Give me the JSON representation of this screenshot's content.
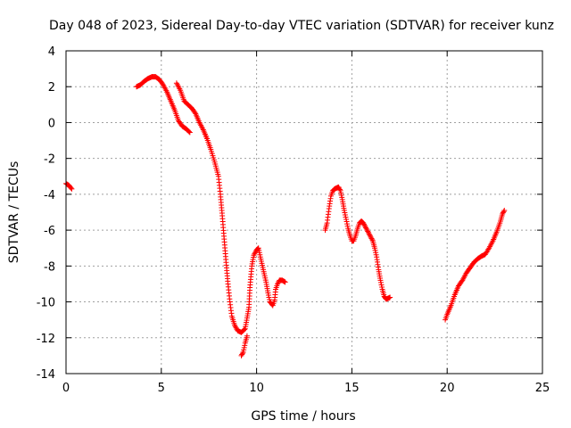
{
  "chart_data": {
    "type": "scatter",
    "title": "Day 048 of 2023, Sidereal Day-to-day VTEC variation (SDTVAR) for receiver kunz",
    "xlabel": "GPS time / hours",
    "ylabel": "SDTVAR / TECUs",
    "xlim": [
      0,
      25
    ],
    "ylim": [
      -14,
      4
    ],
    "xticks": [
      0,
      5,
      10,
      15,
      20,
      25
    ],
    "yticks": [
      -14,
      -12,
      -10,
      -8,
      -6,
      -4,
      -2,
      0,
      2,
      4
    ],
    "grid": true,
    "marker": "+",
    "series_color": "#ff0000",
    "segments": [
      {
        "name": "seg1",
        "points": [
          [
            0.0,
            -3.4
          ],
          [
            0.15,
            -3.5
          ],
          [
            0.3,
            -3.7
          ]
        ]
      },
      {
        "name": "seg2",
        "points": [
          [
            3.7,
            2.0
          ],
          [
            3.9,
            2.1
          ],
          [
            4.1,
            2.3
          ],
          [
            4.3,
            2.45
          ],
          [
            4.5,
            2.55
          ],
          [
            4.7,
            2.55
          ],
          [
            4.9,
            2.4
          ],
          [
            5.1,
            2.1
          ],
          [
            5.3,
            1.7
          ],
          [
            5.5,
            1.2
          ],
          [
            5.7,
            0.7
          ],
          [
            5.9,
            0.1
          ],
          [
            6.1,
            -0.2
          ],
          [
            6.3,
            -0.35
          ],
          [
            6.5,
            -0.55
          ]
        ]
      },
      {
        "name": "seg3",
        "points": [
          [
            5.8,
            2.2
          ],
          [
            6.0,
            1.8
          ],
          [
            6.2,
            1.2
          ],
          [
            6.4,
            1.0
          ],
          [
            6.6,
            0.8
          ],
          [
            6.8,
            0.5
          ],
          [
            7.0,
            0.0
          ],
          [
            7.2,
            -0.4
          ],
          [
            7.4,
            -0.9
          ],
          [
            7.6,
            -1.5
          ],
          [
            7.8,
            -2.2
          ],
          [
            8.0,
            -3.0
          ],
          [
            8.1,
            -4.0
          ],
          [
            8.2,
            -5.2
          ],
          [
            8.3,
            -6.5
          ],
          [
            8.4,
            -7.8
          ],
          [
            8.5,
            -9.0
          ],
          [
            8.6,
            -10.0
          ],
          [
            8.7,
            -10.8
          ],
          [
            8.85,
            -11.3
          ],
          [
            9.0,
            -11.6
          ],
          [
            9.2,
            -11.7
          ],
          [
            9.4,
            -11.5
          ],
          [
            9.5,
            -10.9
          ],
          [
            9.6,
            -10.3
          ],
          [
            9.65,
            -9.2
          ],
          [
            9.75,
            -8.0
          ],
          [
            9.85,
            -7.4
          ],
          [
            10.0,
            -7.1
          ],
          [
            10.1,
            -7.0
          ],
          [
            10.2,
            -7.5
          ],
          [
            10.35,
            -8.2
          ],
          [
            10.5,
            -8.9
          ],
          [
            10.6,
            -9.5
          ],
          [
            10.7,
            -10.0
          ],
          [
            10.85,
            -10.2
          ],
          [
            10.95,
            -9.9
          ],
          [
            11.0,
            -9.3
          ],
          [
            11.1,
            -9.0
          ],
          [
            11.2,
            -8.8
          ],
          [
            11.35,
            -8.8
          ],
          [
            11.5,
            -8.9
          ]
        ]
      },
      {
        "name": "seg4",
        "points": [
          [
            9.2,
            -13.0
          ],
          [
            9.3,
            -12.8
          ],
          [
            9.4,
            -12.3
          ],
          [
            9.5,
            -11.9
          ]
        ]
      },
      {
        "name": "seg5",
        "points": [
          [
            13.6,
            -6.0
          ],
          [
            13.7,
            -5.6
          ],
          [
            13.8,
            -4.8
          ],
          [
            13.9,
            -4.1
          ],
          [
            14.0,
            -3.8
          ],
          [
            14.1,
            -3.7
          ],
          [
            14.2,
            -3.65
          ],
          [
            14.3,
            -3.6
          ],
          [
            14.4,
            -3.8
          ],
          [
            14.5,
            -4.3
          ],
          [
            14.6,
            -4.9
          ],
          [
            14.7,
            -5.4
          ],
          [
            14.8,
            -5.9
          ],
          [
            14.9,
            -6.3
          ],
          [
            15.0,
            -6.6
          ],
          [
            15.1,
            -6.6
          ],
          [
            15.2,
            -6.3
          ],
          [
            15.3,
            -5.9
          ],
          [
            15.4,
            -5.6
          ],
          [
            15.5,
            -5.5
          ],
          [
            15.6,
            -5.6
          ],
          [
            15.7,
            -5.8
          ],
          [
            15.8,
            -6.0
          ],
          [
            15.9,
            -6.2
          ],
          [
            16.0,
            -6.4
          ],
          [
            16.1,
            -6.6
          ],
          [
            16.2,
            -7.0
          ],
          [
            16.3,
            -7.5
          ],
          [
            16.4,
            -8.2
          ],
          [
            16.5,
            -8.8
          ],
          [
            16.6,
            -9.3
          ],
          [
            16.7,
            -9.7
          ],
          [
            16.8,
            -9.85
          ],
          [
            16.9,
            -9.8
          ],
          [
            17.0,
            -9.75
          ]
        ]
      },
      {
        "name": "seg6",
        "points": [
          [
            19.9,
            -11.0
          ],
          [
            20.0,
            -10.7
          ],
          [
            20.2,
            -10.2
          ],
          [
            20.4,
            -9.6
          ],
          [
            20.6,
            -9.1
          ],
          [
            20.8,
            -8.8
          ],
          [
            21.0,
            -8.4
          ],
          [
            21.2,
            -8.1
          ],
          [
            21.4,
            -7.8
          ],
          [
            21.6,
            -7.6
          ],
          [
            21.8,
            -7.45
          ],
          [
            22.0,
            -7.35
          ],
          [
            22.2,
            -7.0
          ],
          [
            22.4,
            -6.6
          ],
          [
            22.6,
            -6.1
          ],
          [
            22.8,
            -5.5
          ],
          [
            22.9,
            -5.1
          ],
          [
            23.0,
            -4.9
          ]
        ]
      }
    ]
  }
}
